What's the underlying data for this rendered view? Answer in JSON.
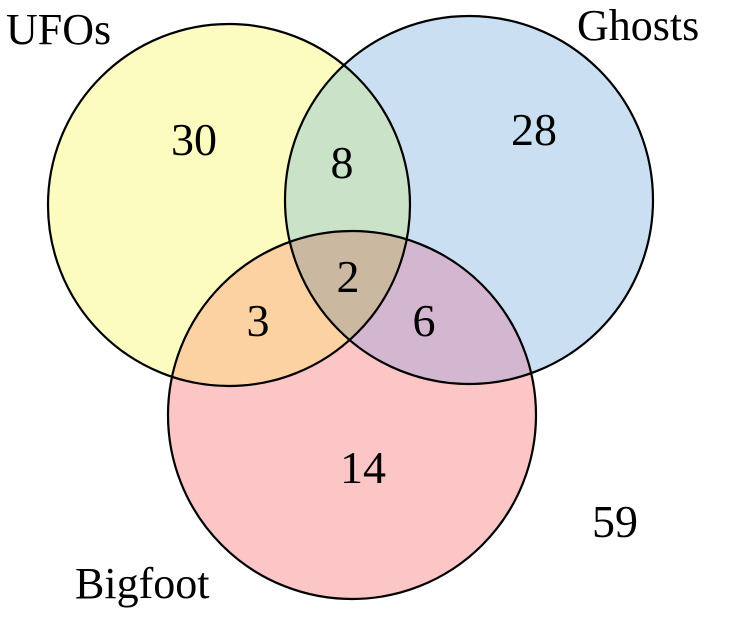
{
  "sets": {
    "ufos": {
      "label": "UFOs",
      "color": "#fdfcc0"
    },
    "ghosts": {
      "label": "Ghosts",
      "color": "#cbdff3"
    },
    "bigfoot": {
      "label": "Bigfoot",
      "color": "#fcc5c6"
    }
  },
  "regions": {
    "ufos_only": "30",
    "ghosts_only": "28",
    "bigfoot_only": "14",
    "ufos_ghosts": "8",
    "ufos_bigfoot": "3",
    "ghosts_bigfoot": "6",
    "all_three": "2",
    "none": "59"
  },
  "overlap_colors": {
    "ufos_ghosts": "#cae2c8",
    "ufos_bigfoot": "#fcd2a3",
    "ghosts_bigfoot": "#d3b6cf",
    "all_three": "#cab8a0"
  }
}
